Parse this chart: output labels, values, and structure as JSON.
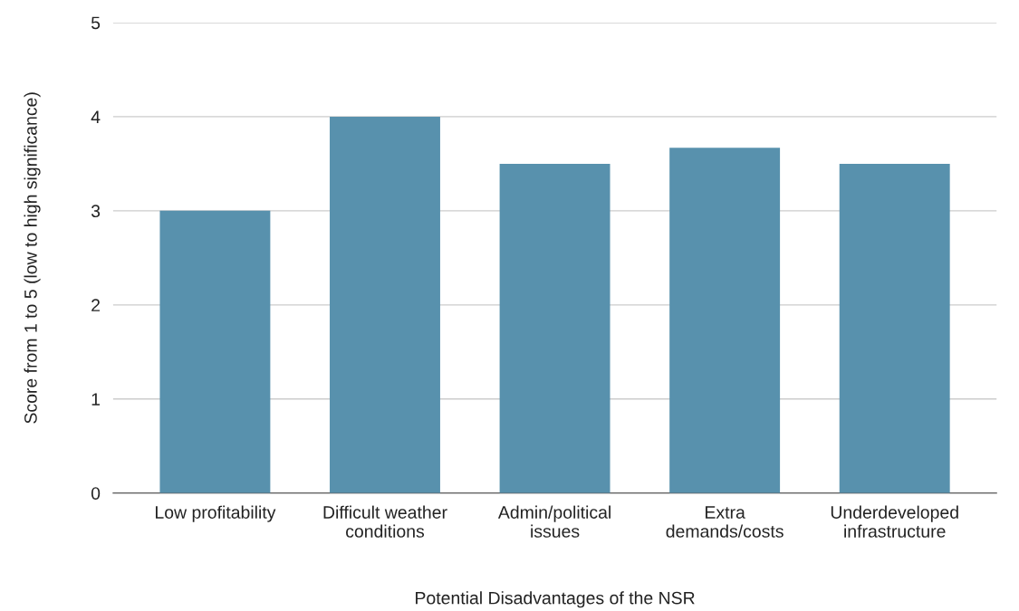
{
  "chart_data": {
    "type": "bar",
    "xlabel": "Potential Disadvantages of the NSR",
    "ylabel": "Score from 1 to 5 (low to high significance)",
    "categories": [
      "Low profitability",
      "Difficult weather\nconditions",
      "Admin/political\nissues",
      "Extra\ndemands/costs",
      "Underdeveloped\ninfrastructure"
    ],
    "values": [
      3,
      4,
      3.5,
      3.67,
      3.5
    ],
    "color": "#5891ad",
    "ylim": [
      0,
      5
    ],
    "yticks": [
      0,
      1,
      2,
      3,
      4,
      5
    ],
    "grid": "y",
    "legend": false
  }
}
